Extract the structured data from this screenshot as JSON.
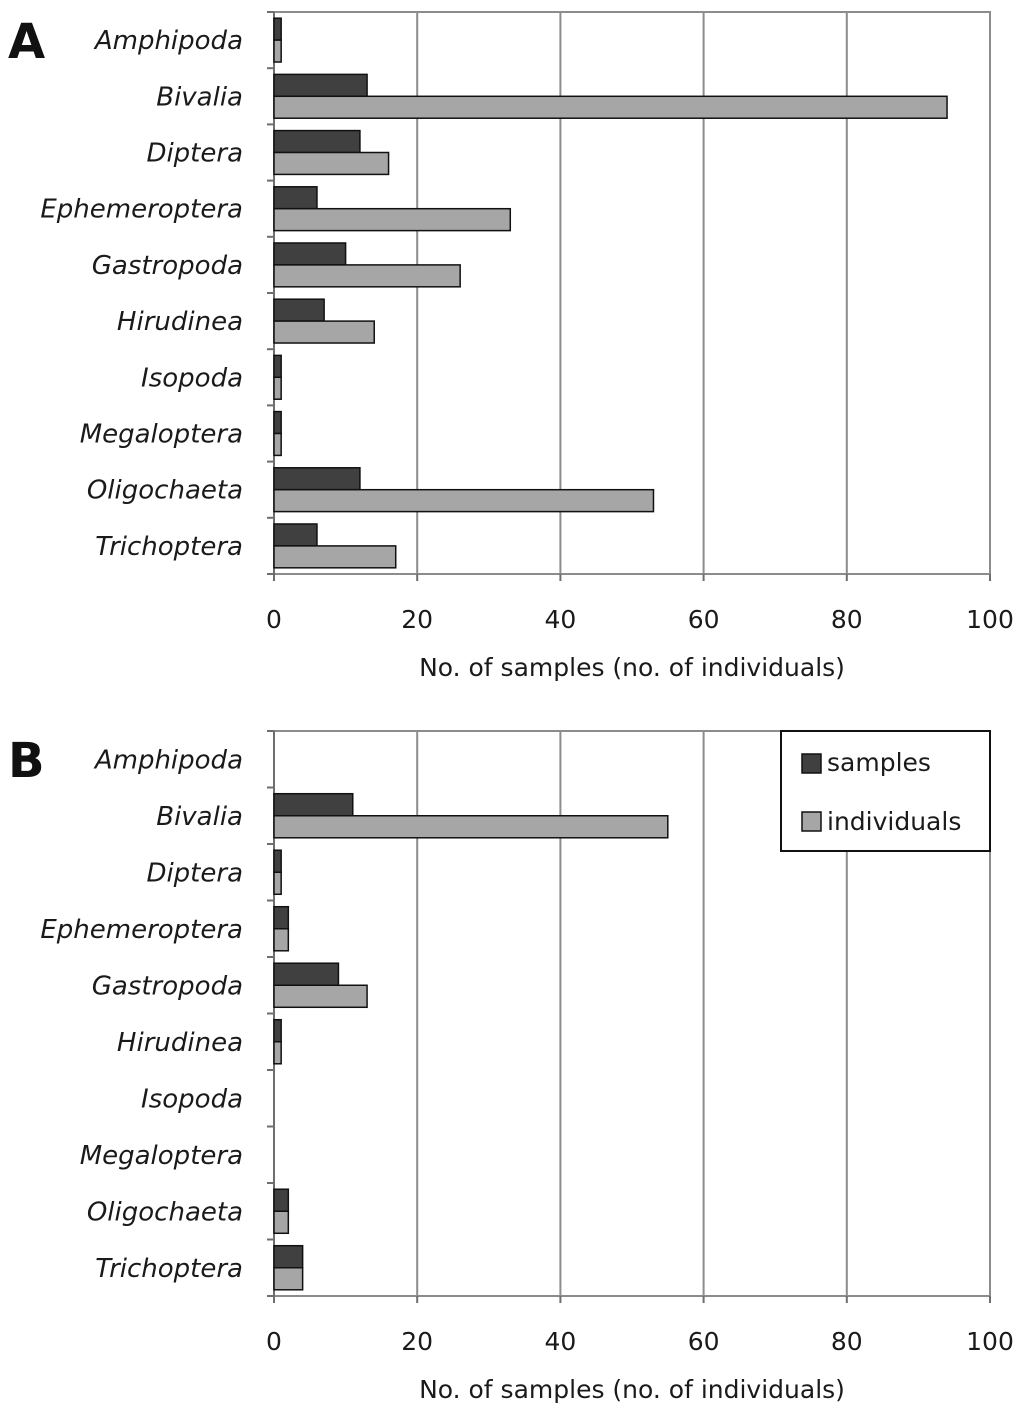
{
  "colors": {
    "samples": "#404040",
    "individuals": "#a6a6a6",
    "grid": "#8c8c8c",
    "axis": "#6e6e6e",
    "bar_stroke": "#111111"
  },
  "legend": {
    "samples_label": "samples",
    "individuals_label": "individuals"
  },
  "chart_data": [
    {
      "panel": "A",
      "type": "bar",
      "orientation": "horizontal",
      "categories": [
        "Amphipoda",
        "Bivalia",
        "Diptera",
        "Ephemeroptera",
        "Gastropoda",
        "Hirudinea",
        "Isopoda",
        "Megaloptera",
        "Oligochaeta",
        "Trichoptera"
      ],
      "series": [
        {
          "name": "samples",
          "values": [
            1,
            13,
            12,
            6,
            10,
            7,
            1,
            1,
            12,
            6
          ]
        },
        {
          "name": "individuals",
          "values": [
            1,
            94,
            16,
            33,
            26,
            14,
            1,
            1,
            53,
            17
          ]
        }
      ],
      "xlabel": "No. of samples (no. of individuals)",
      "xlim": [
        0,
        100
      ],
      "xticks": [
        "0",
        "20",
        "40",
        "60",
        "80",
        "100"
      ],
      "grid": true,
      "legend": false
    },
    {
      "panel": "B",
      "type": "bar",
      "orientation": "horizontal",
      "categories": [
        "Amphipoda",
        "Bivalia",
        "Diptera",
        "Ephemeroptera",
        "Gastropoda",
        "Hirudinea",
        "Isopoda",
        "Megaloptera",
        "Oligochaeta",
        "Trichoptera"
      ],
      "series": [
        {
          "name": "samples",
          "values": [
            0,
            11,
            1,
            2,
            9,
            1,
            0,
            0,
            2,
            4
          ]
        },
        {
          "name": "individuals",
          "values": [
            0,
            55,
            1,
            2,
            13,
            1,
            0,
            0,
            2,
            4
          ]
        }
      ],
      "xlabel": "No. of samples (no. of individuals)",
      "xlim": [
        0,
        100
      ],
      "xticks": [
        "0",
        "20",
        "40",
        "60",
        "80",
        "100"
      ],
      "grid": true,
      "legend": true,
      "legend_position": "top-right"
    }
  ]
}
